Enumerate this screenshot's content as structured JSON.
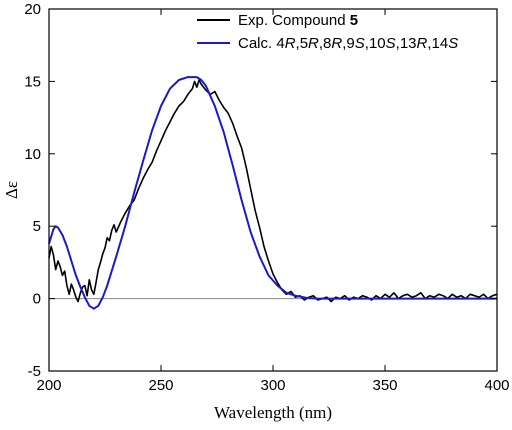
{
  "chart_data": {
    "type": "line",
    "xlabel": "Wavelength (nm)",
    "ylabel": "Δε",
    "xlim": [
      200,
      400
    ],
    "ylim": [
      -5,
      20
    ],
    "xticks": [
      200,
      250,
      300,
      350,
      400
    ],
    "yticks": [
      -5,
      0,
      5,
      10,
      15,
      20
    ],
    "grid": false,
    "zero_line": true,
    "legend_position": "top-right",
    "series": [
      {
        "name": "Exp. Compound 5",
        "legend": [
          {
            "text": "Exp. Compound ",
            "style": "normal"
          },
          {
            "text": "5",
            "style": "bold"
          }
        ],
        "color": "#000000",
        "x": [
          200,
          201,
          202,
          203,
          204,
          205,
          206,
          207,
          208,
          209,
          210,
          211,
          212,
          213,
          214,
          215,
          216,
          217,
          218,
          219,
          220,
          221,
          222,
          223,
          224,
          225,
          226,
          227,
          228,
          229,
          230,
          232,
          234,
          236,
          238,
          240,
          242,
          244,
          246,
          248,
          250,
          252,
          254,
          256,
          258,
          260,
          262,
          264,
          265,
          266,
          267,
          268,
          270,
          272,
          274,
          276,
          278,
          280,
          282,
          284,
          286,
          288,
          290,
          292,
          294,
          296,
          298,
          300,
          302,
          304,
          306,
          308,
          310,
          312,
          314,
          316,
          318,
          320,
          322,
          324,
          326,
          328,
          330,
          332,
          334,
          336,
          338,
          340,
          342,
          344,
          346,
          348,
          350,
          352,
          354,
          356,
          358,
          360,
          362,
          364,
          366,
          368,
          370,
          372,
          374,
          376,
          378,
          380,
          382,
          384,
          386,
          388,
          390,
          392,
          394,
          396,
          398,
          400
        ],
        "y": [
          2.8,
          3.6,
          3.0,
          2.0,
          2.6,
          2.2,
          1.6,
          1.9,
          0.9,
          0.3,
          1.0,
          0.6,
          0.1,
          -0.2,
          0.4,
          0.8,
          0.9,
          0.2,
          1.3,
          0.6,
          0.3,
          1.1,
          2.0,
          2.5,
          3.1,
          3.5,
          4.2,
          4.0,
          4.7,
          5.1,
          4.6,
          5.3,
          5.9,
          6.4,
          6.8,
          7.6,
          8.3,
          8.9,
          9.4,
          10.2,
          10.9,
          11.6,
          12.2,
          12.8,
          13.3,
          13.6,
          14.1,
          14.5,
          15.0,
          14.6,
          15.1,
          14.8,
          14.4,
          14.1,
          14.3,
          13.7,
          13.2,
          12.8,
          12.1,
          11.2,
          10.4,
          9.1,
          7.6,
          6.1,
          4.9,
          3.6,
          2.6,
          1.7,
          1.1,
          0.6,
          0.3,
          0.5,
          0.1,
          0.2,
          -0.1,
          0.1,
          0.2,
          -0.1,
          0.0,
          0.1,
          -0.2,
          0.1,
          0.0,
          0.2,
          -0.1,
          0.1,
          0.0,
          0.2,
          0.1,
          -0.1,
          0.2,
          0.0,
          0.3,
          0.1,
          0.4,
          0.0,
          0.2,
          0.3,
          0.1,
          0.2,
          0.4,
          0.0,
          0.2,
          0.1,
          0.3,
          0.2,
          0.0,
          0.3,
          0.1,
          0.2,
          0.0,
          0.3,
          0.2,
          0.1,
          0.3,
          0.0,
          0.2,
          0.3
        ]
      },
      {
        "name": "Calc. 4R,5R,8R,9S,10S,13R,14S",
        "legend": [
          {
            "text": "Calc. 4",
            "style": "normal"
          },
          {
            "text": "R",
            "style": "italic"
          },
          {
            "text": ",5",
            "style": "normal"
          },
          {
            "text": "R",
            "style": "italic"
          },
          {
            "text": ",8",
            "style": "normal"
          },
          {
            "text": "R",
            "style": "italic"
          },
          {
            "text": ",9",
            "style": "normal"
          },
          {
            "text": "S",
            "style": "italic"
          },
          {
            "text": ",10",
            "style": "normal"
          },
          {
            "text": "S",
            "style": "italic"
          },
          {
            "text": ",13",
            "style": "normal"
          },
          {
            "text": "R",
            "style": "italic"
          },
          {
            "text": ",14",
            "style": "normal"
          },
          {
            "text": "S",
            "style": "italic"
          }
        ],
        "color": "#1a1acc",
        "x": [
          200,
          202,
          203,
          204,
          206,
          208,
          210,
          212,
          214,
          216,
          218,
          220,
          222,
          224,
          226,
          228,
          230,
          234,
          238,
          242,
          246,
          250,
          254,
          258,
          262,
          264,
          266,
          268,
          270,
          274,
          278,
          282,
          286,
          290,
          294,
          298,
          302,
          306,
          310,
          315,
          320,
          330,
          340,
          350,
          360,
          380,
          400
        ],
        "y": [
          3.8,
          4.8,
          5.0,
          4.9,
          4.4,
          3.6,
          2.6,
          1.6,
          0.8,
          0.1,
          -0.5,
          -0.7,
          -0.5,
          0.1,
          0.9,
          1.9,
          2.9,
          5.0,
          7.3,
          9.5,
          11.6,
          13.3,
          14.5,
          15.1,
          15.3,
          15.3,
          15.3,
          15.1,
          14.7,
          13.3,
          11.5,
          9.2,
          6.8,
          4.6,
          2.9,
          1.6,
          0.9,
          0.4,
          0.2,
          0.05,
          0.0,
          0.0,
          0.0,
          0.0,
          0.0,
          0.0,
          0.0
        ]
      }
    ]
  }
}
